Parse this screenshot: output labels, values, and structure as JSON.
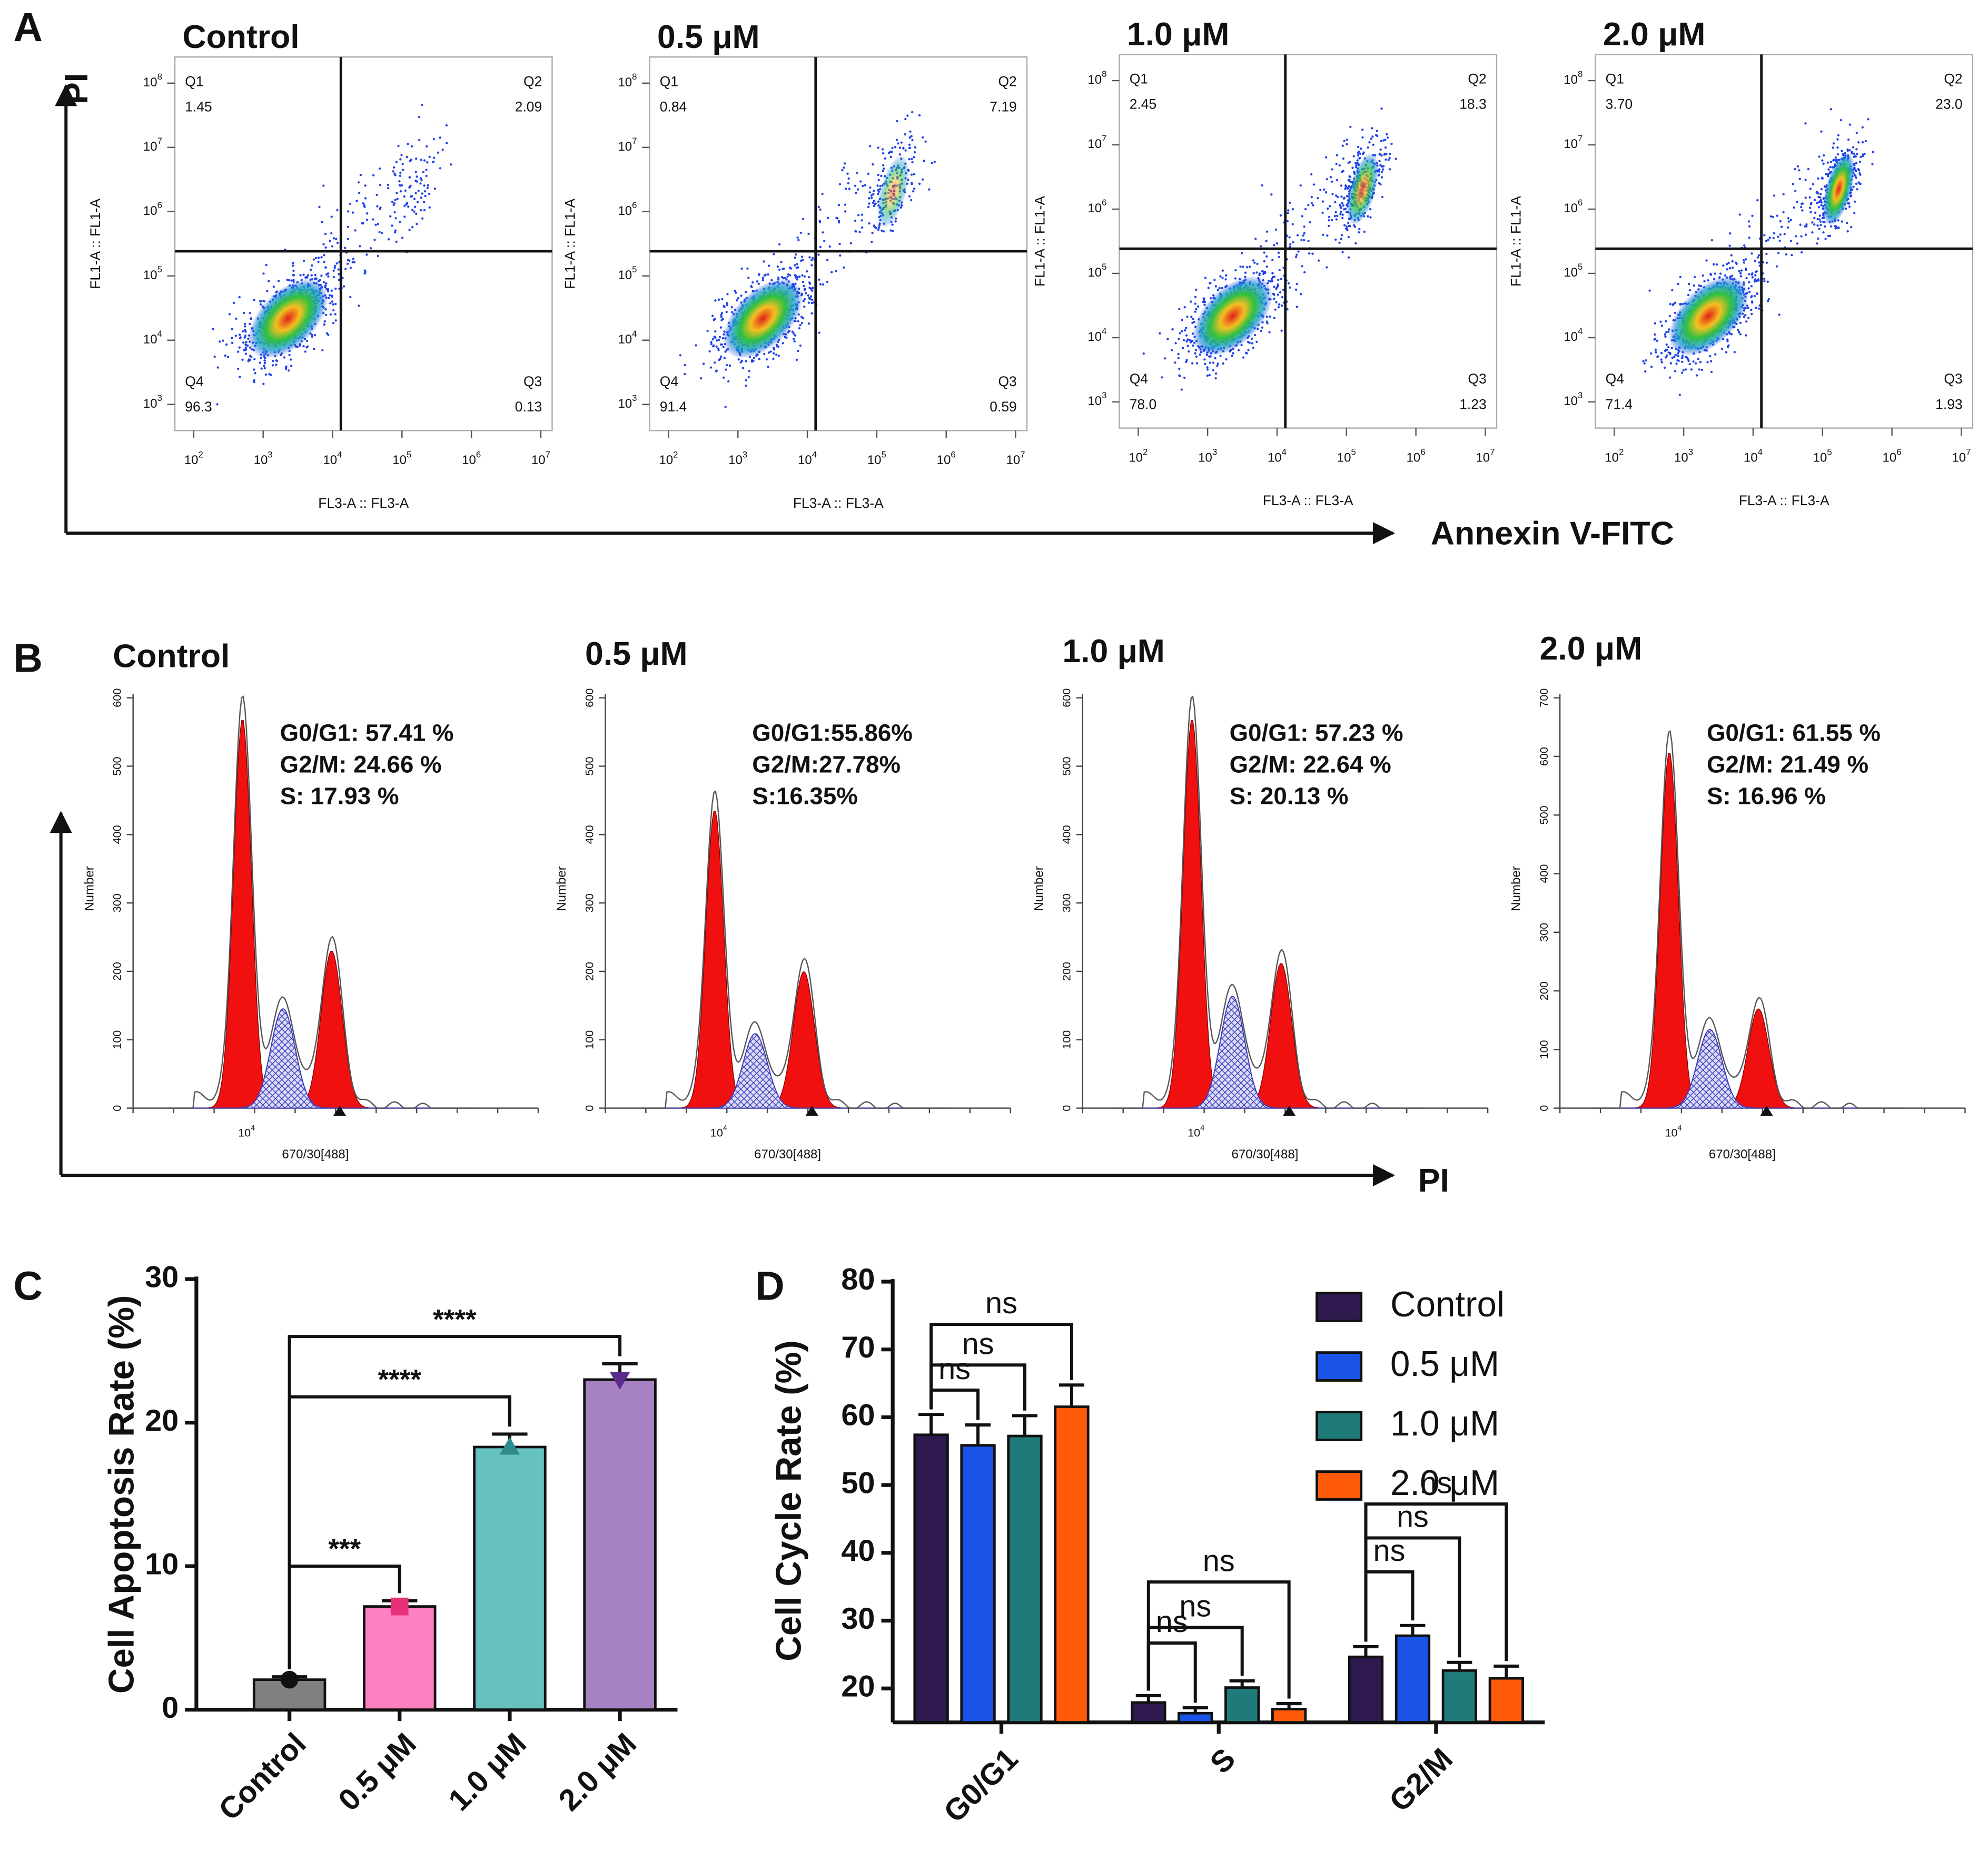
{
  "panel_labels": [
    "A",
    "B",
    "C",
    "D"
  ],
  "panel_a": {
    "y_axis": "PI",
    "x_axis": "Annexin V-FITC",
    "tick_base": "10",
    "x_exponents": [
      "2",
      "3",
      "4",
      "5",
      "6",
      "7"
    ],
    "y_exponents": [
      "3",
      "4",
      "5",
      "6",
      "7",
      "8"
    ],
    "plots": [
      {
        "title": "Control",
        "x_label": "FL3-A :: FL3-A",
        "y_label": "FL1-A :: FL1-A",
        "quadrants": [
          {
            "name": "Q1",
            "value": "1.45"
          },
          {
            "name": "Q2",
            "value": "2.09"
          },
          {
            "name": "Q3",
            "value": "0.13"
          },
          {
            "name": "Q4",
            "value": "96.3"
          }
        ]
      },
      {
        "title": "0.5 μM",
        "x_label": "FL3-A :: FL3-A",
        "y_label": "FL1-A :: FL1-A",
        "quadrants": [
          {
            "name": "Q1",
            "value": "0.84"
          },
          {
            "name": "Q2",
            "value": "7.19"
          },
          {
            "name": "Q3",
            "value": "0.59"
          },
          {
            "name": "Q4",
            "value": "91.4"
          }
        ]
      },
      {
        "title": "1.0 μM",
        "x_label": "FL3-A :: FL3-A",
        "y_label": "FL1-A :: FL1-A",
        "quadrants": [
          {
            "name": "Q1",
            "value": "2.45"
          },
          {
            "name": "Q2",
            "value": "18.3"
          },
          {
            "name": "Q3",
            "value": "1.23"
          },
          {
            "name": "Q4",
            "value": "78.0"
          }
        ]
      },
      {
        "title": "2.0 μM",
        "x_label": "FL3-A :: FL3-A",
        "y_label": "FL1-A :: FL1-A",
        "quadrants": [
          {
            "name": "Q1",
            "value": "3.70"
          },
          {
            "name": "Q2",
            "value": "23.0"
          },
          {
            "name": "Q3",
            "value": "1.93"
          },
          {
            "name": "Q4",
            "value": "71.4"
          }
        ]
      }
    ]
  },
  "panel_b": {
    "x_axis": "PI",
    "plots": [
      {
        "title": "Control",
        "y_label": "Number",
        "x_label": "670/30[488]",
        "x_tick": {
          "base": "10",
          "exp": "4"
        },
        "yticks": [
          "0",
          "100",
          "200",
          "300",
          "400",
          "500",
          "600"
        ],
        "stats": [
          "G0/G1: 57.41 %",
          "G2/M: 24.66 %",
          "S: 17.93 %"
        ]
      },
      {
        "title": "0.5 μM",
        "y_label": "Number",
        "x_label": "670/30[488]",
        "x_tick": {
          "base": "10",
          "exp": "4"
        },
        "yticks": [
          "0",
          "100",
          "200",
          "300",
          "400",
          "500",
          "600"
        ],
        "stats": [
          "G0/G1:55.86%",
          "G2/M:27.78%",
          "S:16.35%"
        ]
      },
      {
        "title": "1.0 μM",
        "y_label": "Number",
        "x_label": "670/30[488]",
        "x_tick": {
          "base": "10",
          "exp": "4"
        },
        "yticks": [
          "0",
          "100",
          "200",
          "300",
          "400",
          "500",
          "600"
        ],
        "stats": [
          "G0/G1: 57.23 %",
          "G2/M: 22.64 %",
          "S:  20.13 %"
        ]
      },
      {
        "title": "2.0 μM",
        "y_label": "Number",
        "x_label": "670/30[488]",
        "x_tick": {
          "base": "10",
          "exp": "4"
        },
        "yticks": [
          "0",
          "100",
          "200",
          "300",
          "400",
          "500",
          "600",
          "700"
        ],
        "stats": [
          "G0/G1: 61.55 %",
          "G2/M: 21.49 %",
          "S: 16.96 %"
        ]
      }
    ]
  },
  "chart_data": [
    {
      "type": "bar",
      "y_label": "Cell Apoptosis Rate (%)",
      "categories": [
        "Control",
        "0.5 μM",
        "1.0 μM",
        "2.0 μM"
      ],
      "values": [
        2.09,
        7.19,
        18.3,
        23.0
      ],
      "errors": [
        0.2,
        0.4,
        0.9,
        1.1
      ],
      "colors": [
        "#808080",
        "#ff80c0",
        "#66c2bf",
        "#a782c3"
      ],
      "markers": [
        "circle",
        "square",
        "triangle-up",
        "triangle-down"
      ],
      "marker_colors": [
        "#111111",
        "#e8307a",
        "#2e8b8b",
        "#5b2b8a"
      ],
      "ylim": [
        0,
        30
      ],
      "yticks": [
        0,
        10,
        20,
        30
      ],
      "annotations": [
        {
          "from": 0,
          "to": 1,
          "y": 10.0,
          "label": "***"
        },
        {
          "from": 0,
          "to": 2,
          "y": 21.8,
          "label": "****"
        },
        {
          "from": 0,
          "to": 3,
          "y": 26.0,
          "label": "****"
        }
      ]
    },
    {
      "type": "grouped_bar",
      "y_label": "Cell Cycle Rate (%)",
      "categories": [
        "G0/G1",
        "S",
        "G2/M"
      ],
      "series": [
        {
          "name": "Control",
          "color": "#2e1a4f",
          "values": [
            57.41,
            17.93,
            24.66
          ],
          "errors": [
            3.0,
            1.0,
            1.5
          ]
        },
        {
          "name": "0.5 μM",
          "color": "#1a53e8",
          "values": [
            55.86,
            16.35,
            27.78
          ],
          "errors": [
            3.0,
            0.8,
            1.5
          ]
        },
        {
          "name": "1.0 μM",
          "color": "#1f7a7a",
          "values": [
            57.23,
            20.13,
            22.64
          ],
          "errors": [
            3.0,
            1.0,
            1.2
          ]
        },
        {
          "name": "2.0 μM",
          "color": "#ff5a0a",
          "values": [
            61.55,
            16.96,
            21.49
          ],
          "errors": [
            3.2,
            0.8,
            1.8
          ]
        }
      ],
      "ylim": [
        15,
        80
      ],
      "yticks": [
        20,
        30,
        40,
        50,
        60,
        70,
        80
      ],
      "legend": "upper right",
      "annotations": [
        {
          "group": 0,
          "from": 0,
          "to": 1,
          "y": 64.0,
          "label": "ns"
        },
        {
          "group": 0,
          "from": 0,
          "to": 2,
          "y": 67.7,
          "label": "ns"
        },
        {
          "group": 0,
          "from": 0,
          "to": 3,
          "y": 73.7,
          "label": "ns"
        },
        {
          "group": 1,
          "from": 0,
          "to": 1,
          "y": 26.7,
          "label": "ns"
        },
        {
          "group": 1,
          "from": 0,
          "to": 2,
          "y": 29.0,
          "label": "ns"
        },
        {
          "group": 1,
          "from": 0,
          "to": 3,
          "y": 35.7,
          "label": "ns"
        },
        {
          "group": 2,
          "from": 0,
          "to": 1,
          "y": 37.2,
          "label": "ns"
        },
        {
          "group": 2,
          "from": 0,
          "to": 2,
          "y": 42.2,
          "label": "ns"
        },
        {
          "group": 2,
          "from": 0,
          "to": 3,
          "y": 47.2,
          "label": "ns"
        }
      ]
    }
  ]
}
